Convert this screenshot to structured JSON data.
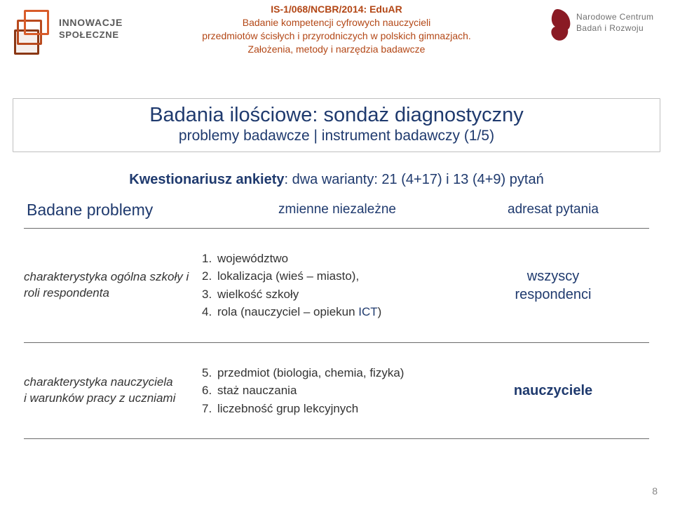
{
  "header": {
    "logo_left": {
      "line1": "INNOWACJE",
      "line2": "SPOŁECZNE"
    },
    "center": {
      "l1": "IS-1/068/NCBR/2014: EduAR",
      "l2": "Badanie kompetencji cyfrowych nauczycieli",
      "l3": "przedmiotów ścisłych i przyrodniczych w polskich gimnazjach.",
      "l4": "Założenia, metody i narzędzia badawcze"
    },
    "logo_right": {
      "line1": "Narodowe Centrum",
      "line2": "Badań i Rozwoju"
    }
  },
  "title": {
    "main": "Badania ilościowe: sondaż diagnostyczny",
    "sub": "problemy badawcze | instrument badawczy (1/5)"
  },
  "kw": {
    "label": "Kwestionariusz ankiety",
    "rest": ": dwa warianty: 21 (4+17) i 13 (4+9) pytań"
  },
  "table": {
    "head": {
      "c1": "Badane problemy",
      "c2": "zmienne niezależne",
      "c3": "adresat pytania"
    },
    "rows": [
      {
        "c1": "charakterystyka ogólna szkoły i roli respondenta",
        "items": [
          {
            "n": "1.",
            "t": "województwo"
          },
          {
            "n": "2.",
            "t": "lokalizacja (wieś – miasto),"
          },
          {
            "n": "3.",
            "t": "wielkość szkoły"
          },
          {
            "n": "4.",
            "t_pre": "rola (nauczyciel – opiekun ",
            "t_ict": "ICT",
            "t_post": ")"
          }
        ],
        "c3a": "wszyscy",
        "c3b": "respondenci"
      },
      {
        "c1": "charakterystyka nauczyciela i warunków pracy z uczniami",
        "items": [
          {
            "n": "5.",
            "t": "przedmiot (biologia, chemia, fizyka)"
          },
          {
            "n": "6.",
            "t": "staż nauczania"
          },
          {
            "n": "7.",
            "t": "liczebność grup lekcyjnych"
          }
        ],
        "c3a": "nauczyciele",
        "c3_bold": true
      }
    ]
  },
  "page_number": "8",
  "colors": {
    "heading": "#1f3a6e",
    "header_text": "#b34716"
  }
}
